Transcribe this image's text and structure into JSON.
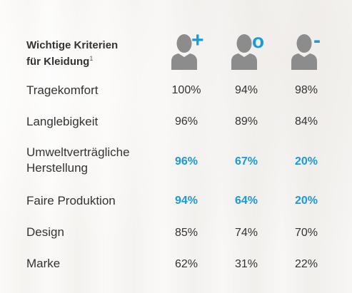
{
  "header": {
    "line1": "Wichtige Kriterien",
    "line2": "für Kleidung",
    "footnote": "1"
  },
  "columns": [
    {
      "icon": "person-plus-icon",
      "sign": "+"
    },
    {
      "icon": "person-neutral-icon",
      "sign": "o"
    },
    {
      "icon": "person-minus-icon",
      "sign": "-"
    }
  ],
  "colors": {
    "text": "#333333",
    "highlight": "#1a9ad6",
    "icon": "#8c8c8c"
  },
  "rows": [
    {
      "label": "Tragekomfort",
      "values": [
        "100%",
        "94%",
        "98%"
      ],
      "highlight": false
    },
    {
      "label": "Langlebigkeit",
      "values": [
        "96%",
        "89%",
        "84%"
      ],
      "highlight": false
    },
    {
      "label": "Umweltverträgliche",
      "label2": "Herstellung",
      "values": [
        "96%",
        "67%",
        "20%"
      ],
      "highlight": true
    },
    {
      "label": "Faire Produktion",
      "values": [
        "94%",
        "64%",
        "20%"
      ],
      "highlight": true
    },
    {
      "label": "Design",
      "values": [
        "85%",
        "74%",
        "70%"
      ],
      "highlight": false
    },
    {
      "label": "Marke",
      "values": [
        "62%",
        "31%",
        "22%"
      ],
      "highlight": false
    }
  ]
}
